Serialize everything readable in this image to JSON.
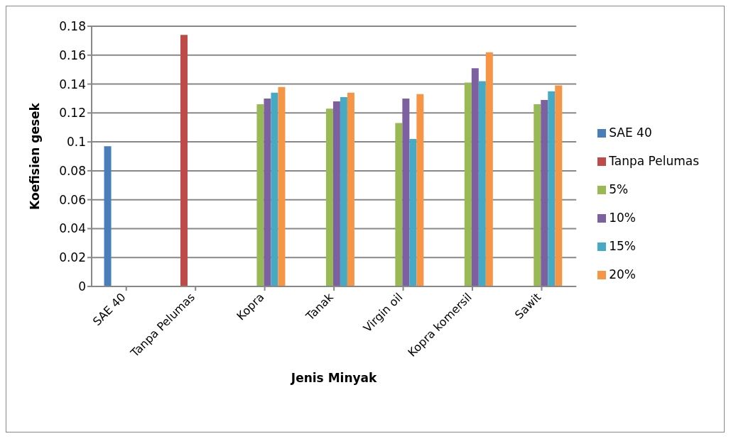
{
  "chart_data": {
    "type": "bar",
    "xlabel": "Jenis Minyak",
    "ylabel": "Koefisien gesek",
    "categories": [
      "SAE 40",
      "Tanpa Pelumas",
      "Kopra",
      "Tanak",
      "Virgin oil",
      "Kopra komersil",
      "Sawit"
    ],
    "series": [
      {
        "name": "SAE 40",
        "color": "#4a7ebb",
        "values": [
          0.097,
          null,
          null,
          null,
          null,
          null,
          null
        ]
      },
      {
        "name": "Tanpa Pelumas",
        "color": "#be4b48",
        "values": [
          null,
          0.174,
          null,
          null,
          null,
          null,
          null
        ]
      },
      {
        "name": "5%",
        "color": "#98b954",
        "values": [
          null,
          null,
          0.126,
          0.123,
          0.113,
          0.141,
          0.126
        ]
      },
      {
        "name": "10%",
        "color": "#7d60a0",
        "values": [
          null,
          null,
          0.13,
          0.128,
          0.13,
          0.151,
          0.129
        ]
      },
      {
        "name": "15%",
        "color": "#46aac5",
        "values": [
          null,
          null,
          0.134,
          0.131,
          0.102,
          0.142,
          0.135
        ]
      },
      {
        "name": "20%",
        "color": "#f69546",
        "values": [
          null,
          null,
          0.138,
          0.134,
          0.133,
          0.162,
          0.139
        ]
      }
    ],
    "ylim": [
      0,
      0.18
    ],
    "yticks": [
      0,
      0.02,
      0.04,
      0.06,
      0.08,
      0.1,
      0.12,
      0.14,
      0.16,
      0.18
    ],
    "grid": "y",
    "legend": "right"
  }
}
